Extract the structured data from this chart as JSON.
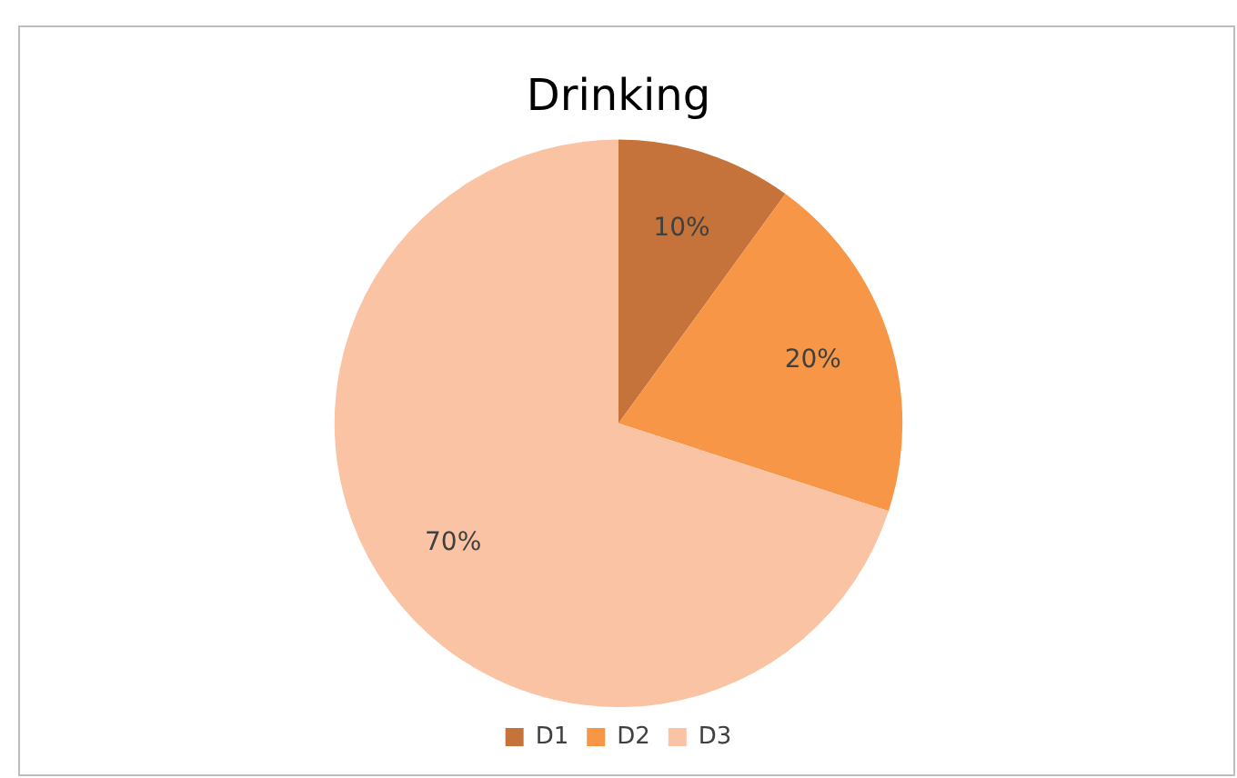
{
  "chart_data": {
    "type": "pie",
    "title": "Drinking",
    "categories": [
      "D1",
      "D2",
      "D3"
    ],
    "values": [
      10,
      20,
      70
    ],
    "colors": [
      "#c5733a",
      "#f79646",
      "#f9c3a4"
    ],
    "value_labels": [
      "10%",
      "20%",
      "70%"
    ],
    "legend": "bottom"
  }
}
